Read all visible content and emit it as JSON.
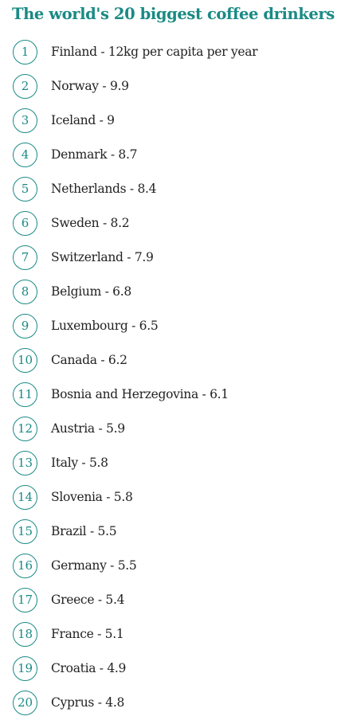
{
  "title": "The world's 20 biggest coffee drinkers",
  "accent_color": "#1a8a85",
  "items": [
    {
      "rank": "1",
      "text": "Finland - 12kg per capita per year"
    },
    {
      "rank": "2",
      "text": "Norway - 9.9"
    },
    {
      "rank": "3",
      "text": "Iceland - 9"
    },
    {
      "rank": "4",
      "text": "Denmark - 8.7"
    },
    {
      "rank": "5",
      "text": "Netherlands - 8.4"
    },
    {
      "rank": "6",
      "text": "Sweden - 8.2"
    },
    {
      "rank": "7",
      "text": "Switzerland - 7.9"
    },
    {
      "rank": "8",
      "text": "Belgium - 6.8"
    },
    {
      "rank": "9",
      "text": "Luxembourg - 6.5"
    },
    {
      "rank": "10",
      "text": "Canada - 6.2"
    },
    {
      "rank": "11",
      "text": "Bosnia and Herzegovina - 6.1"
    },
    {
      "rank": "12",
      "text": "Austria - 5.9"
    },
    {
      "rank": "13",
      "text": "Italy - 5.8"
    },
    {
      "rank": "14",
      "text": "Slovenia - 5.8"
    },
    {
      "rank": "15",
      "text": "Brazil - 5.5"
    },
    {
      "rank": "16",
      "text": "Germany - 5.5"
    },
    {
      "rank": "17",
      "text": "Greece - 5.4"
    },
    {
      "rank": "18",
      "text": "France - 5.1"
    },
    {
      "rank": "19",
      "text": "Croatia - 4.9"
    },
    {
      "rank": "20",
      "text": "Cyprus - 4.8"
    }
  ]
}
